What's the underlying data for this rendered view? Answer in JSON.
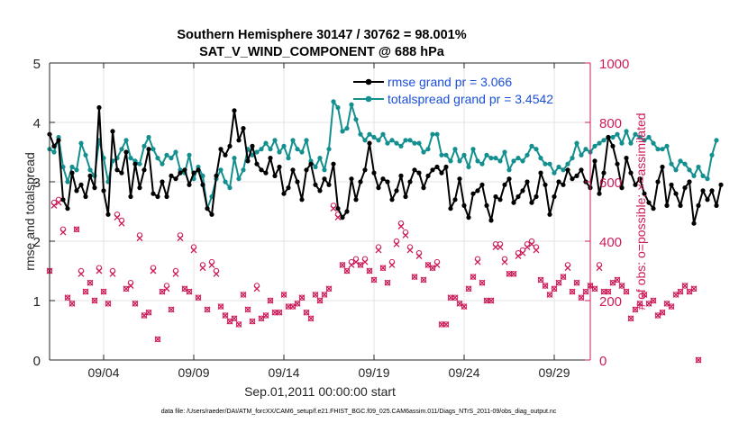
{
  "chart_data": {
    "type": "line",
    "title": "Southern Hemisphere 30147 / 30762 = 98.001%",
    "subtitle": "SAT_V_WIND_COMPONENT @ 688 hPa",
    "xlabel": "Sep.01,2011 00:00:00 start",
    "ylabel": "rmse and totalspread",
    "ylabel_right": "# of obs: o=possible; ×=assimilated",
    "footnote": "data file: /Users/raeder/DAI/ATM_forcXX/CAM6_setup/f.e21.FHIST_BGC.f09_025.CAM6assim.011/Diags_NTrS_2011-09/obs_diag_output.nc",
    "x_range": [
      1.0,
      31.0
    ],
    "x_ticks": [
      4,
      9,
      14,
      19,
      24,
      29
    ],
    "x_tick_labels": [
      "09/04",
      "09/09",
      "09/14",
      "09/19",
      "09/24",
      "09/29"
    ],
    "ylim": [
      0,
      5
    ],
    "y_ticks": [
      "0",
      "1",
      "2",
      "3",
      "4",
      "5"
    ],
    "ylim_right": [
      0,
      1000
    ],
    "y_ticks_right": [
      "0",
      "200",
      "400",
      "600",
      "800",
      "1000"
    ],
    "colors": {
      "rmse": "#000000",
      "spread": "#138f8f",
      "obs": "#cc1c5b",
      "legend_text": "#1a4fd6"
    },
    "series": [
      {
        "name": "rmse grand pr = 3.066",
        "marker": "o",
        "x_start": 1.0,
        "x_step": 0.25,
        "values": [
          3.8,
          3.6,
          3.7,
          2.7,
          2.55,
          3.15,
          2.85,
          2.95,
          2.75,
          3.1,
          2.9,
          4.25,
          2.85,
          2.45,
          3.85,
          3.2,
          3.15,
          3.5,
          2.75,
          3.3,
          2.9,
          3.2,
          3.55,
          2.8,
          2.75,
          3.0,
          2.75,
          3.1,
          3.05,
          3.15,
          3.2,
          2.95,
          3.15,
          3.2,
          2.95,
          2.55,
          2.45,
          3.1,
          3.55,
          3.45,
          3.6,
          4.2,
          3.7,
          3.9,
          3.35,
          3.6,
          3.3,
          3.2,
          3.15,
          3.4,
          3.1,
          3.25,
          2.8,
          2.9,
          3.2,
          3.0,
          2.7,
          3.2,
          3.3,
          2.95,
          2.85,
          3.05,
          2.95,
          3.3,
          2.55,
          2.4,
          2.5,
          3.05,
          2.7,
          3.0,
          3.2,
          3.65,
          3.15,
          2.9,
          3.05,
          3.0,
          2.7,
          2.85,
          3.1,
          2.75,
          3.0,
          3.2,
          3.15,
          2.9,
          3.1,
          3.2,
          3.25,
          3.15,
          3.25,
          2.55,
          2.7,
          3.05,
          2.6,
          2.4,
          2.8,
          2.85,
          2.95,
          2.6,
          2.35,
          2.75,
          2.7,
          2.95,
          3.05,
          2.65,
          2.75,
          2.85,
          3.0,
          2.65,
          2.75,
          3.15,
          2.95,
          2.45,
          2.75,
          3.0,
          2.95,
          3.2,
          3.05,
          3.1,
          3.2,
          3.0,
          2.9,
          3.35,
          2.8,
          3.15,
          3.75,
          3.6,
          3.3,
          2.9,
          3.4,
          3.15,
          2.95,
          3.05,
          2.8,
          2.65,
          2.55,
          3.0,
          3.25,
          2.6,
          2.95,
          2.8,
          2.6,
          2.9,
          3.0,
          2.3,
          2.6,
          2.85,
          2.7,
          2.85,
          2.6,
          2.95
        ]
      },
      {
        "name": "totalspread grand pr = 3.4542",
        "marker": "o",
        "x_start": 1.0,
        "x_step": 0.25,
        "values": [
          3.55,
          3.5,
          3.75,
          3.25,
          3.0,
          3.25,
          3.2,
          3.65,
          3.45,
          3.2,
          3.1,
          3.7,
          3.4,
          3.0,
          3.35,
          3.4,
          3.55,
          3.7,
          3.4,
          3.35,
          3.3,
          3.6,
          3.75,
          3.55,
          3.4,
          3.3,
          3.45,
          3.4,
          3.5,
          3.2,
          3.15,
          3.45,
          3.05,
          3.25,
          3.1,
          2.55,
          2.75,
          3.05,
          3.2,
          3.0,
          2.9,
          3.4,
          3.05,
          3.2,
          3.55,
          3.45,
          3.5,
          3.55,
          3.65,
          3.55,
          3.7,
          3.5,
          3.6,
          3.4,
          3.7,
          3.55,
          3.5,
          3.7,
          3.35,
          3.25,
          3.4,
          3.2,
          3.55,
          4.35,
          4.25,
          3.85,
          3.9,
          4.3,
          4.05,
          3.8,
          3.7,
          3.8,
          3.75,
          3.7,
          3.8,
          3.65,
          3.7,
          3.65,
          3.6,
          3.7,
          3.7,
          3.65,
          3.65,
          3.5,
          3.55,
          3.8,
          3.8,
          3.45,
          3.45,
          3.35,
          3.55,
          3.35,
          3.45,
          3.25,
          3.55,
          3.35,
          3.3,
          3.45,
          3.4,
          3.4,
          3.35,
          3.5,
          3.2,
          3.35,
          3.4,
          3.35,
          3.45,
          3.6,
          3.55,
          3.4,
          3.3,
          3.3,
          3.15,
          3.25,
          3.2,
          3.3,
          3.4,
          3.65,
          3.45,
          3.55,
          3.5,
          3.6,
          3.65,
          3.7,
          3.75,
          3.75,
          3.8,
          3.65,
          3.85,
          3.65,
          3.8,
          3.75,
          3.7,
          3.75,
          3.65,
          3.55,
          3.55,
          3.6,
          3.3,
          3.2,
          3.35,
          3.3,
          3.2,
          3.1,
          3.25,
          3.1,
          3.05,
          3.45,
          3.7
        ]
      }
    ],
    "obs_possible": {
      "name": "possible",
      "marker": "o",
      "x_start": 1.0,
      "x_step": 0.25,
      "values": [
        300,
        530,
        540,
        440,
        210,
        190,
        440,
        300,
        230,
        260,
        200,
        310,
        230,
        190,
        300,
        490,
        470,
        240,
        260,
        190,
        420,
        150,
        160,
        310,
        70,
        230,
        250,
        170,
        300,
        420,
        240,
        230,
        380,
        210,
        320,
        170,
        330,
        300,
        180,
        150,
        130,
        140,
        120,
        220,
        170,
        130,
        250,
        140,
        150,
        200,
        160,
        160,
        220,
        180,
        180,
        190,
        210,
        160,
        140,
        220,
        200,
        220,
        240,
        520,
        490,
        320,
        300,
        330,
        340,
        320,
        340,
        300,
        270,
        380,
        310,
        260,
        330,
        400,
        460,
        430,
        380,
        280,
        360,
        270,
        320,
        310,
        330,
        120,
        120,
        210,
        210,
        190,
        180,
        240,
        280,
        340,
        260,
        200,
        200,
        390,
        390,
        340,
        290,
        290,
        360,
        370,
        390,
        400,
        380,
        270,
        250,
        220,
        240,
        260,
        280,
        320,
        230,
        260,
        210,
        230,
        250,
        240,
        320,
        230,
        230,
        260,
        270,
        250,
        230,
        140,
        170,
        190,
        220,
        190,
        200,
        150,
        160,
        190,
        180,
        220,
        230,
        250,
        230,
        240,
        0
      ]
    },
    "obs_assimilated": {
      "name": "assimilated",
      "marker": "×",
      "x_start": 1.0,
      "x_step": 0.25,
      "values": [
        300,
        520,
        530,
        430,
        210,
        190,
        440,
        290,
        230,
        260,
        200,
        300,
        230,
        190,
        290,
        480,
        460,
        240,
        250,
        190,
        410,
        150,
        160,
        300,
        70,
        230,
        240,
        170,
        290,
        410,
        240,
        230,
        370,
        210,
        310,
        170,
        320,
        290,
        180,
        150,
        130,
        140,
        120,
        220,
        170,
        130,
        240,
        140,
        150,
        200,
        160,
        160,
        220,
        180,
        180,
        190,
        210,
        160,
        140,
        220,
        200,
        220,
        240,
        510,
        480,
        320,
        300,
        320,
        330,
        320,
        330,
        300,
        270,
        370,
        310,
        260,
        320,
        390,
        450,
        420,
        370,
        280,
        350,
        270,
        320,
        310,
        320,
        120,
        120,
        210,
        210,
        190,
        180,
        240,
        280,
        330,
        260,
        200,
        200,
        380,
        380,
        330,
        290,
        290,
        350,
        360,
        380,
        390,
        370,
        270,
        250,
        220,
        240,
        260,
        280,
        310,
        230,
        260,
        210,
        230,
        250,
        240,
        310,
        230,
        230,
        260,
        270,
        250,
        230,
        140,
        170,
        190,
        220,
        190,
        200,
        150,
        160,
        190,
        180,
        220,
        230,
        250,
        230,
        240,
        0
      ]
    }
  }
}
